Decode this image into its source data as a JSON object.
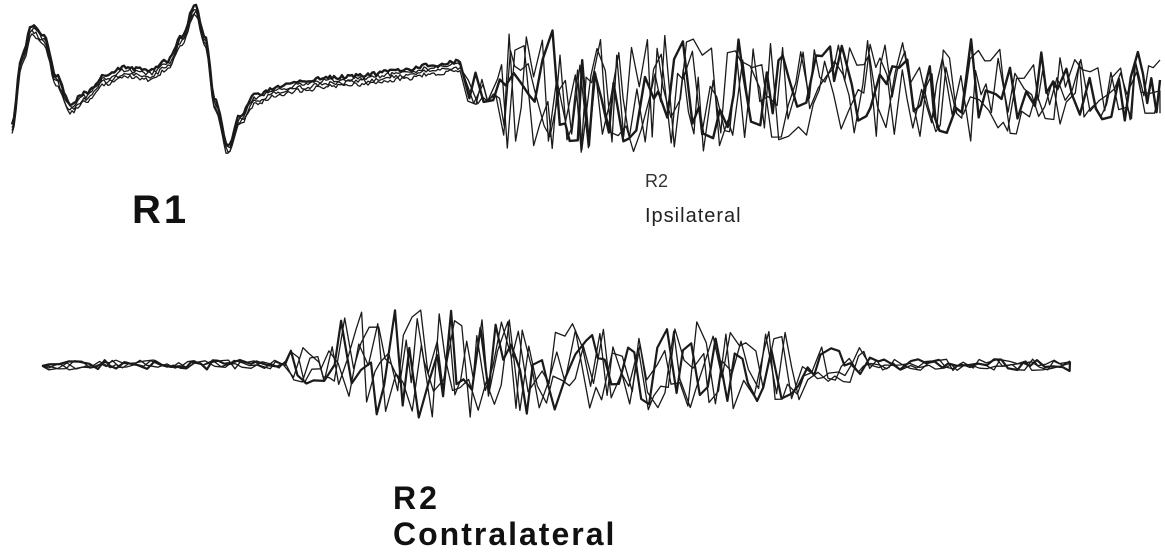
{
  "labels": {
    "r1": "R1",
    "r2_ipsi_title": "R2",
    "r2_ipsi_sub": "Ipsilateral",
    "r2_contra_title": "R2",
    "r2_contra_sub": "Contralateral"
  },
  "colors": {
    "trace": "#1a1a1a",
    "background": "#ffffff"
  },
  "traces": [
    {
      "name": "upper-superimposed-emg-traces",
      "sweeps": 4,
      "components": [
        "R1",
        "R2 ipsilateral"
      ]
    },
    {
      "name": "lower-superimposed-emg-traces",
      "sweeps": 4,
      "components": [
        "R2 contralateral"
      ]
    }
  ]
}
